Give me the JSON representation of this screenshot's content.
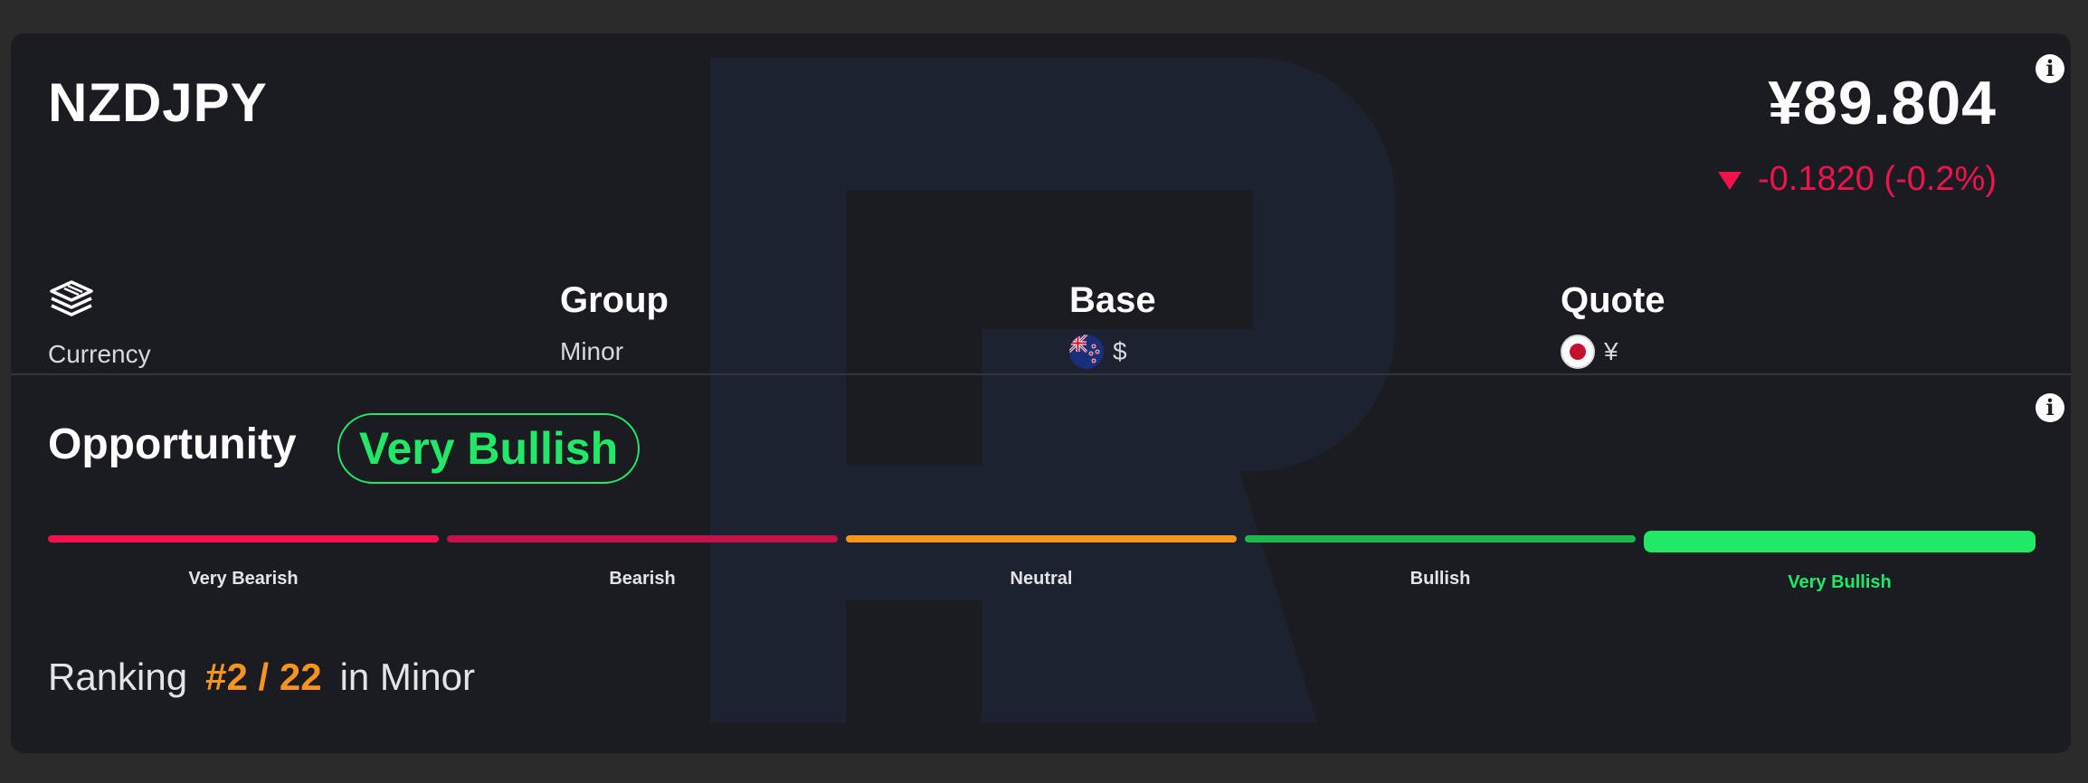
{
  "header": {
    "symbol": "NZDJPY",
    "price": "¥89.804",
    "change": "-0.1820 (-0.2%)",
    "change_direction": "down",
    "change_color": "#f0134d"
  },
  "meta": {
    "type": {
      "icon": "stack-icon",
      "value": "Currency"
    },
    "group": {
      "title": "Group",
      "value": "Minor"
    },
    "base": {
      "title": "Base",
      "flag": "nz-flag-icon",
      "symbol": "$"
    },
    "quote": {
      "title": "Quote",
      "flag": "jp-flag-icon",
      "symbol": "¥"
    }
  },
  "opportunity": {
    "label": "Opportunity",
    "value": "Very Bullish",
    "color": "#21e866"
  },
  "gauge": {
    "segments": [
      {
        "label": "Very Bearish",
        "color": "#f0134d",
        "active": false
      },
      {
        "label": "Bearish",
        "color": "#c2134b",
        "active": false
      },
      {
        "label": "Neutral",
        "color": "#f7941d",
        "active": false
      },
      {
        "label": "Bullish",
        "color": "#1fb84e",
        "active": false
      },
      {
        "label": "Very Bullish",
        "color": "#21e866",
        "active": true
      }
    ]
  },
  "ranking": {
    "prefix": "Ranking",
    "value": "#2 / 22",
    "suffix": "in Minor",
    "color": "#f7941d"
  }
}
